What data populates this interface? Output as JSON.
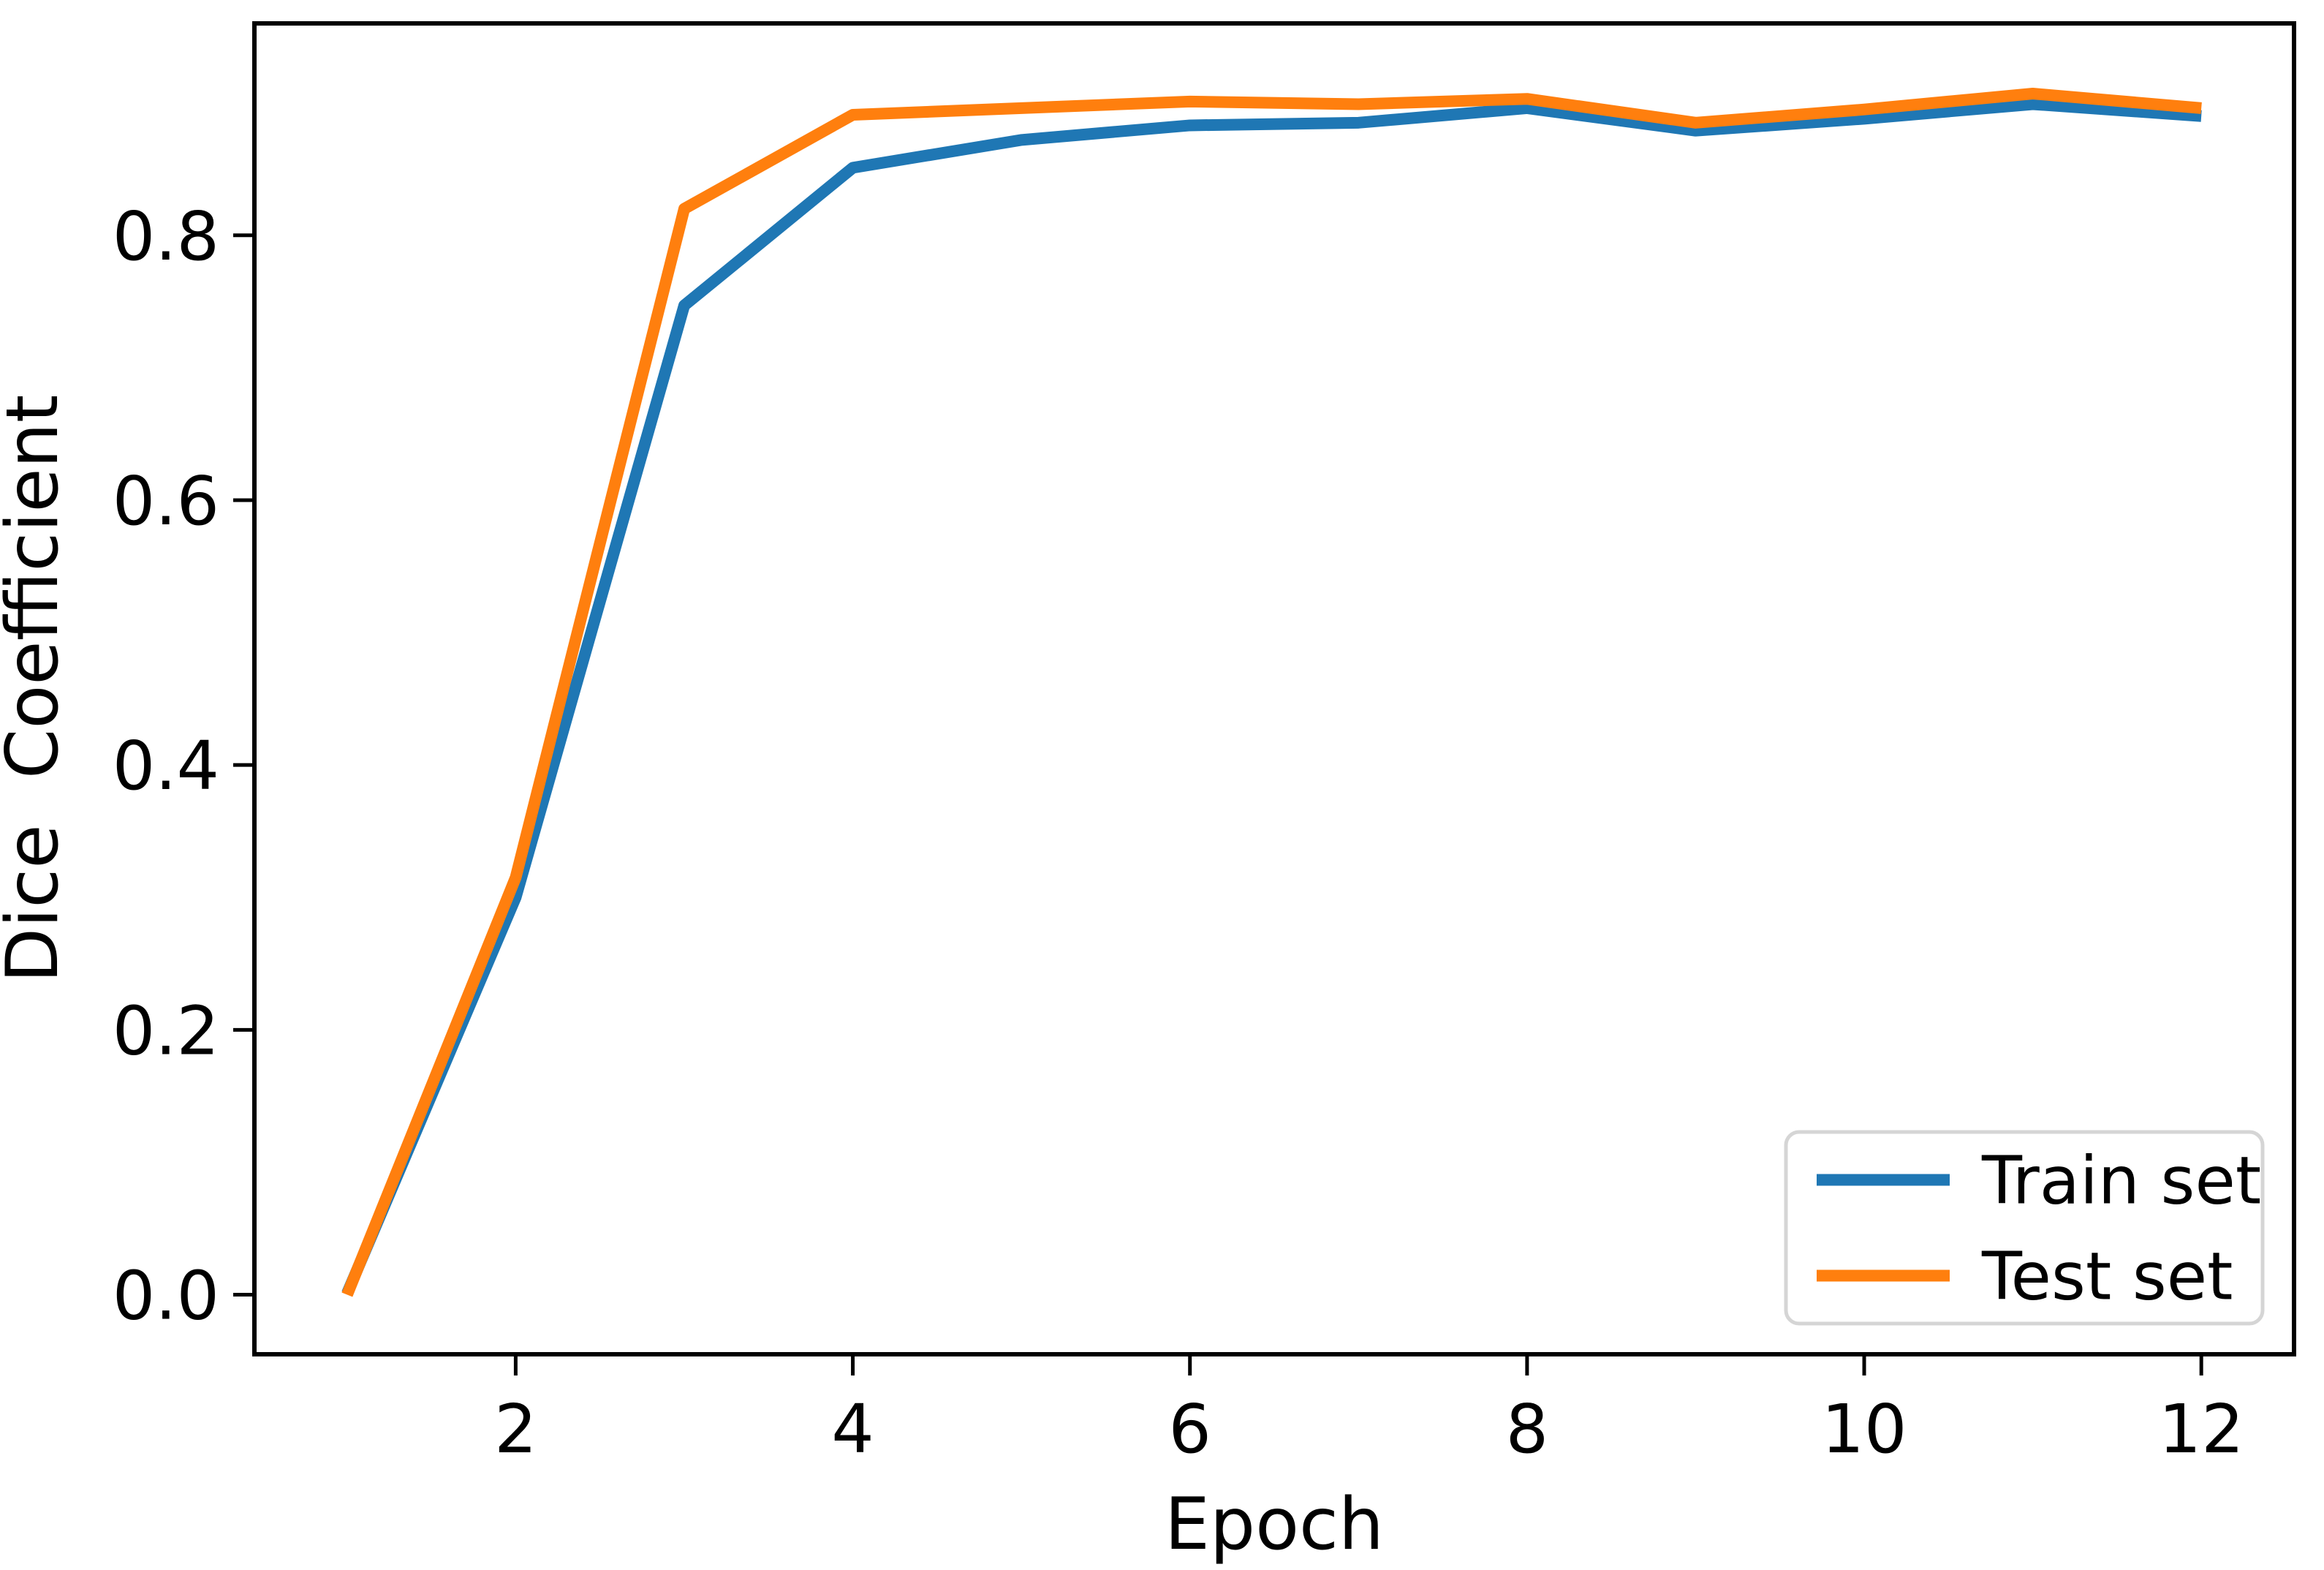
{
  "page": {
    "background": "#ffffff"
  },
  "chart_data": {
    "type": "line",
    "title": "",
    "xlabel": "Epoch",
    "ylabel": "Dice  Coefficient",
    "grid": false,
    "legend_position": "lower right",
    "axis_color": "#000000",
    "xlim": [
      0.45,
      12.55
    ],
    "ylim": [
      -0.045,
      0.96
    ],
    "x": [
      1,
      2,
      3,
      4,
      5,
      6,
      7,
      8,
      9,
      10,
      11,
      12
    ],
    "x_ticks": [
      {
        "value": 2,
        "label": "2"
      },
      {
        "value": 4,
        "label": "4"
      },
      {
        "value": 6,
        "label": "6"
      },
      {
        "value": 8,
        "label": "8"
      },
      {
        "value": 10,
        "label": "10"
      },
      {
        "value": 12,
        "label": "12"
      }
    ],
    "y_ticks": [
      {
        "value": 0.0,
        "label": "0.0"
      },
      {
        "value": 0.2,
        "label": "0.2"
      },
      {
        "value": 0.4,
        "label": "0.4"
      },
      {
        "value": 0.6,
        "label": "0.6"
      },
      {
        "value": 0.8,
        "label": "0.8"
      }
    ],
    "series": [
      {
        "name": "Train set",
        "color": "#1f77b4",
        "values": [
          0.001,
          0.3,
          0.747,
          0.851,
          0.872,
          0.883,
          0.885,
          0.896,
          0.879,
          0.888,
          0.899,
          0.89
        ]
      },
      {
        "name": "Test set",
        "color": "#ff7f0e",
        "values": [
          0.0,
          0.315,
          0.82,
          0.891,
          0.896,
          0.901,
          0.899,
          0.903,
          0.885,
          0.895,
          0.907,
          0.896
        ]
      }
    ]
  }
}
